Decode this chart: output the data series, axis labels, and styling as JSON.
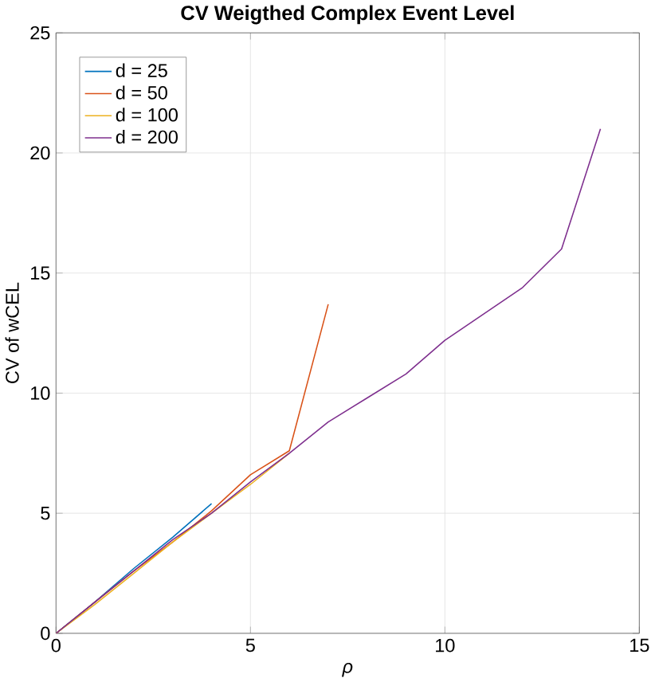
{
  "chart_data": {
    "type": "line",
    "title": "CV Weigthed Complex Event Level",
    "xlabel": "ρ",
    "ylabel": "CV of wCEL",
    "xlim": [
      0,
      15
    ],
    "ylim": [
      0,
      25
    ],
    "xticks": [
      0,
      5,
      10,
      15
    ],
    "yticks": [
      0,
      5,
      10,
      15,
      20,
      25
    ],
    "grid": true,
    "legend": "top left",
    "marker": "none",
    "line_style": "solid",
    "series": [
      {
        "name": "d = 25",
        "color": "#0072bd",
        "x": [
          0,
          1,
          2,
          3,
          4
        ],
        "values": [
          0,
          1.3,
          2.7,
          4.0,
          5.4
        ]
      },
      {
        "name": "d = 50",
        "color": "#d95319",
        "x": [
          0,
          1,
          2,
          3,
          4,
          5,
          6,
          7
        ],
        "values": [
          0,
          1.3,
          2.6,
          3.8,
          5.1,
          6.6,
          7.6,
          13.7
        ]
      },
      {
        "name": "d = 100",
        "color": "#edb120",
        "x": [
          0,
          1,
          2,
          3,
          4,
          5,
          6
        ],
        "values": [
          0,
          1.2,
          2.5,
          3.8,
          5.0,
          6.2,
          7.5
        ]
      },
      {
        "name": "d = 200",
        "color": "#7e2f8e",
        "x": [
          0,
          1,
          2,
          3,
          4,
          5,
          6,
          7,
          8,
          9,
          10,
          11,
          12,
          13,
          14
        ],
        "values": [
          0,
          1.3,
          2.6,
          3.9,
          5.0,
          6.3,
          7.5,
          8.8,
          9.8,
          10.8,
          12.2,
          13.3,
          14.4,
          16.0,
          21.0
        ]
      }
    ]
  }
}
